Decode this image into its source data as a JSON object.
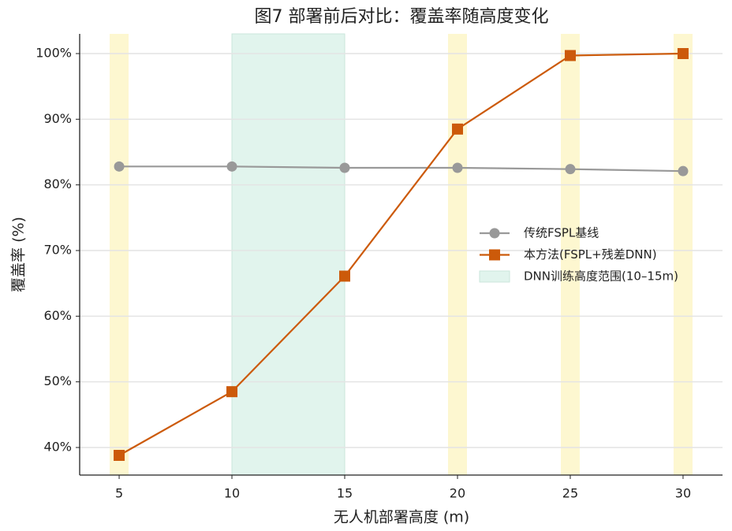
{
  "chart_data": {
    "type": "line",
    "title": "图7 部署前后对比：覆盖率随高度变化",
    "x_label": "无人机部署高度 (m)",
    "y_label": "覆盖率 (%)",
    "x": [
      5,
      10,
      15,
      20,
      25,
      30
    ],
    "series": [
      {
        "name": "传统FSPL基线",
        "color": "#999999",
        "marker": "circle",
        "values": [
          82.8,
          82.8,
          82.6,
          82.6,
          82.4,
          82.1
        ]
      },
      {
        "name": "本方法(FSPL+残差DNN)",
        "color": "#cc5a0a",
        "marker": "square",
        "values": [
          38.8,
          48.5,
          66.1,
          88.5,
          99.7,
          100
        ]
      }
    ],
    "span": {
      "name": "DNN训练高度范围(10–15m)",
      "xmin": 10,
      "xmax": 15,
      "color": "#c9ecdf"
    },
    "highlight_x": [
      5,
      20,
      25,
      30
    ],
    "highlight_color": "#fdf6c8",
    "xlim": [
      3.25,
      31.75
    ],
    "ylim": [
      35.8,
      103
    ],
    "xticks": [
      5,
      10,
      15,
      20,
      25,
      30
    ],
    "yticks": [
      {
        "value": 40,
        "label": "40%"
      },
      {
        "value": 50,
        "label": "50%"
      },
      {
        "value": 60,
        "label": "60%"
      },
      {
        "value": 70,
        "label": "70%"
      },
      {
        "value": 80,
        "label": "80%"
      },
      {
        "value": 90,
        "label": "90%"
      },
      {
        "value": 100,
        "label": "100%"
      }
    ],
    "grid": true,
    "legend": "right"
  }
}
